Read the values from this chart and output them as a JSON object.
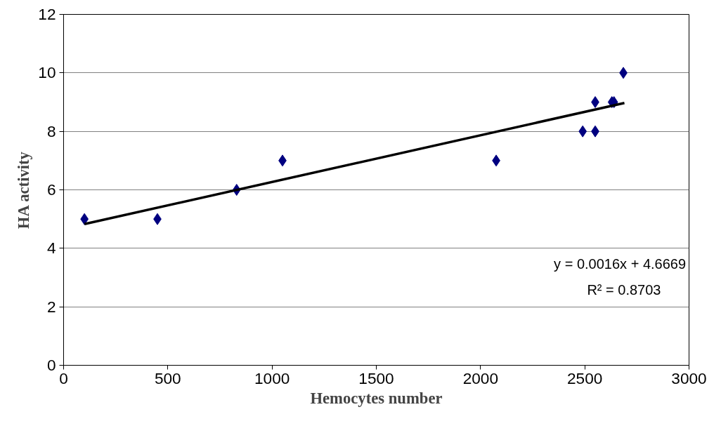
{
  "chart_data": {
    "type": "scatter",
    "xlabel": "Hemocytes number",
    "ylabel": "HA activity",
    "x": [
      100,
      450,
      830,
      1050,
      2075,
      2490,
      2550,
      2550,
      2630,
      2640,
      2685
    ],
    "series": [
      {
        "color": "#000080",
        "marker": "diamond",
        "values": [
          5,
          5,
          6,
          7,
          7,
          8,
          8,
          9,
          9,
          9,
          10
        ]
      },
      {
        "type": "line",
        "color": "#000000",
        "marker": "none",
        "x": [
          100,
          2690
        ],
        "values": [
          4.83,
          8.97
        ]
      }
    ],
    "grid": "y",
    "xlim": [
      0,
      3000
    ],
    "xticks": [
      0,
      500,
      1000,
      1500,
      2000,
      2500,
      3000
    ],
    "ylim": [
      0,
      12
    ],
    "yticks": [
      0,
      2,
      4,
      6,
      8,
      10,
      12
    ],
    "annotations": [
      "y = 0.0016x + 4.6669",
      "R² = 0.8703"
    ]
  }
}
